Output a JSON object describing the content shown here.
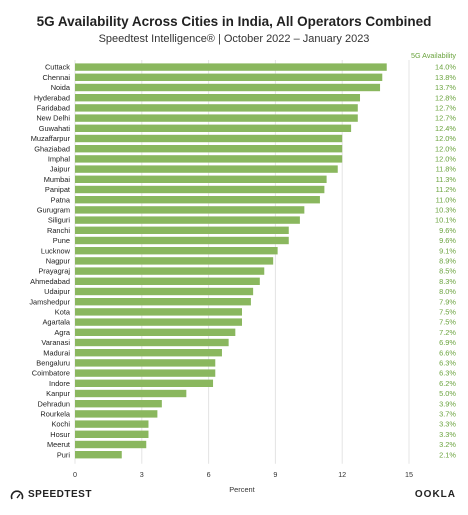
{
  "chart_data": {
    "type": "bar",
    "orientation": "horizontal",
    "title": "5G Availability Across Cities in India, All Operators Combined",
    "subtitle": "Speedtest Intelligence® | October 2022 – January 2023",
    "xlabel": "Percent",
    "legend": "5G Availability",
    "xlim": [
      0,
      15
    ],
    "xticks": [
      0,
      3,
      6,
      9,
      12,
      15
    ],
    "bar_color": "#8ab75e",
    "label_color": "#6aa33e",
    "categories": [
      "Cuttack",
      "Chennai",
      "Noida",
      "Hyderabad",
      "Faridabad",
      "New Delhi",
      "Guwahati",
      "Muzaffarpur",
      "Ghaziabad",
      "Imphal",
      "Jaipur",
      "Mumbai",
      "Panipat",
      "Patna",
      "Gurugram",
      "Siliguri",
      "Ranchi",
      "Pune",
      "Lucknow",
      "Nagpur",
      "Prayagraj",
      "Ahmedabad",
      "Udaipur",
      "Jamshedpur",
      "Kota",
      "Agartala",
      "Agra",
      "Varanasi",
      "Madurai",
      "Bengaluru",
      "Coimbatore",
      "Indore",
      "Kanpur",
      "Dehradun",
      "Rourkela",
      "Kochi",
      "Hosur",
      "Meerut",
      "Puri"
    ],
    "values": [
      14.0,
      13.8,
      13.7,
      12.8,
      12.7,
      12.7,
      12.4,
      12.0,
      12.0,
      12.0,
      11.8,
      11.3,
      11.2,
      11.0,
      10.3,
      10.1,
      9.6,
      9.6,
      9.1,
      8.9,
      8.5,
      8.3,
      8.0,
      7.9,
      7.5,
      7.5,
      7.2,
      6.9,
      6.6,
      6.3,
      6.3,
      6.2,
      5.0,
      3.9,
      3.7,
      3.3,
      3.3,
      3.2,
      2.1
    ],
    "value_labels": [
      "14.0%",
      "13.8%",
      "13.7%",
      "12.8%",
      "12.7%",
      "12.7%",
      "12.4%",
      "12.0%",
      "12.0%",
      "12.0%",
      "11.8%",
      "11.3%",
      "11.2%",
      "11.0%",
      "10.3%",
      "10.1%",
      "9.6%",
      "9.6%",
      "9.1%",
      "8.9%",
      "8.5%",
      "8.3%",
      "8.0%",
      "7.9%",
      "7.5%",
      "7.5%",
      "7.2%",
      "6.9%",
      "6.6%",
      "6.3%",
      "6.3%",
      "6.2%",
      "5.0%",
      "3.9%",
      "3.7%",
      "3.3%",
      "3.3%",
      "3.2%",
      "2.1%"
    ]
  },
  "branding": {
    "left_logo": "SPEEDTEST",
    "right_logo": "OOKLA"
  }
}
